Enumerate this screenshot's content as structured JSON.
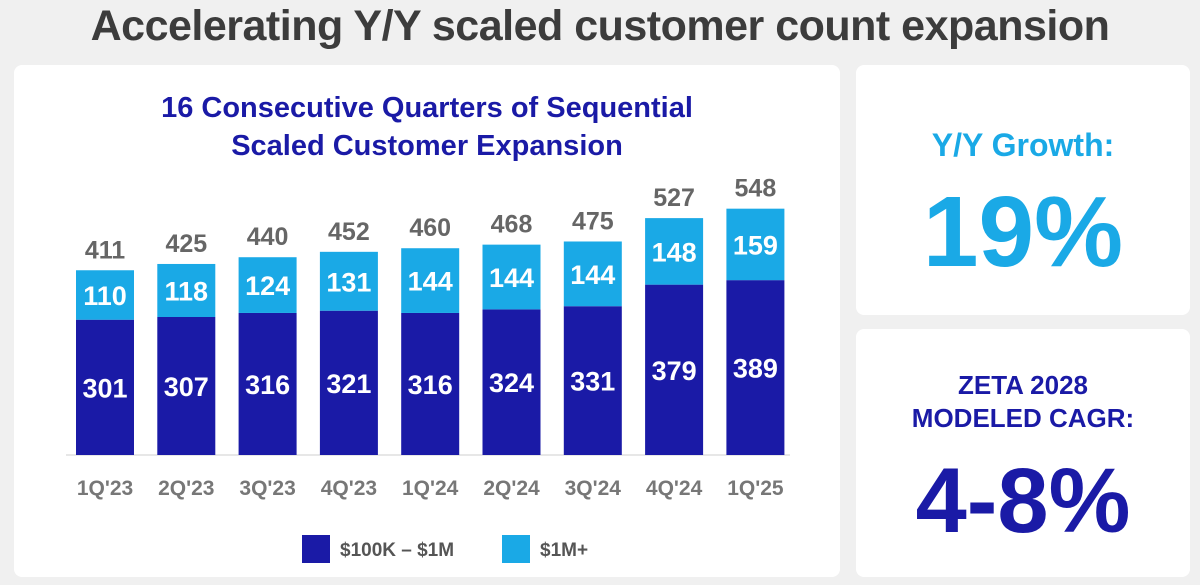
{
  "page_title": "Accelerating Y/Y scaled customer count expansion",
  "growth": {
    "label": "Y/Y Growth:",
    "value": "19%"
  },
  "cagr": {
    "label_line1": "ZETA 2028",
    "label_line2": "MODELED CAGR:",
    "value": "4-8%"
  },
  "colors": {
    "dark_blue": "#1a1aa6",
    "light_blue": "#1aa9e6",
    "gray_text": "#666666"
  },
  "chart_data": {
    "type": "bar",
    "stacked": true,
    "title_line1": "16 Consecutive Quarters of Sequential",
    "title_line2": "Scaled Customer Expansion",
    "categories": [
      "1Q'23",
      "2Q'23",
      "3Q'23",
      "4Q'23",
      "1Q'24",
      "2Q'24",
      "3Q'24",
      "4Q'24",
      "1Q'25"
    ],
    "series": [
      {
        "name": "$100K – $1M",
        "color": "#1a1aa6",
        "values": [
          301,
          307,
          316,
          321,
          316,
          324,
          331,
          379,
          389
        ]
      },
      {
        "name": "$1M+",
        "color": "#1aa9e6",
        "values": [
          110,
          118,
          124,
          131,
          144,
          144,
          144,
          148,
          159
        ]
      }
    ],
    "totals": [
      411,
      425,
      440,
      452,
      460,
      468,
      475,
      527,
      548
    ],
    "legend_position": "bottom",
    "grid": false
  }
}
